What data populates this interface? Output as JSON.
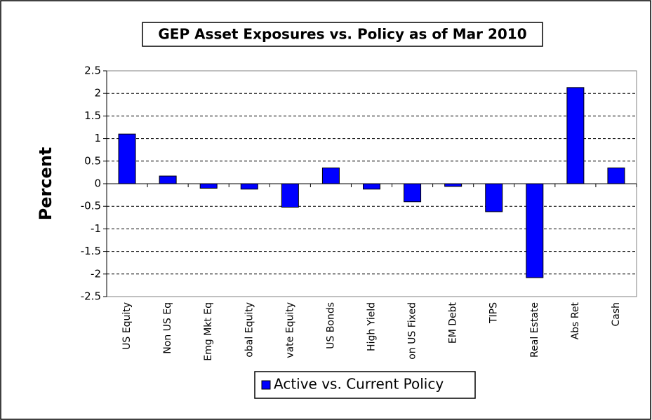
{
  "chart_data": {
    "type": "bar",
    "title": "GEP Asset Exposures vs. Policy as of Mar 2010",
    "y_label": "Percent",
    "categories": [
      "US Equity",
      "Non US Eq",
      "Emg Mkt Eq",
      "obal Equity",
      "vate Equity",
      "US Bonds",
      "High Yield",
      "on US Fixed",
      "EM Debt",
      "TIPS",
      "Real Estate",
      "Abs Ret",
      "Cash"
    ],
    "series": [
      {
        "name": "Active vs. Current Policy",
        "color": "#0000ff",
        "values": [
          1.1,
          0.17,
          -0.1,
          -0.12,
          -0.52,
          0.35,
          -0.12,
          -0.4,
          -0.06,
          -0.62,
          -2.08,
          2.13,
          0.35
        ]
      }
    ],
    "ylim": [
      -2.5,
      2.5
    ],
    "yticks": [
      2.5,
      2,
      1.5,
      1,
      0.5,
      0,
      -0.5,
      -1,
      -1.5,
      -2,
      -2.5
    ],
    "grid": true,
    "legend": "bottom"
  }
}
